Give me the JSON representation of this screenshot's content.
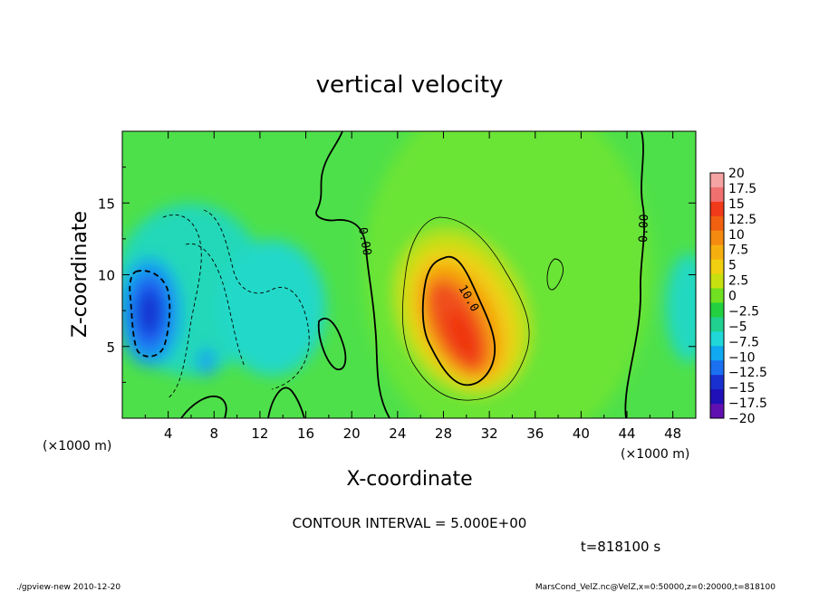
{
  "chart_data": {
    "type": "heatmap",
    "title": "vertical velocity",
    "xlabel": "X-coordinate",
    "ylabel": "Z-coordinate",
    "x_unit": "(×1000 m)",
    "y_unit": "(×1000 m)",
    "xlim": [
      0,
      50
    ],
    "ylim": [
      0,
      20
    ],
    "x_ticks": [
      4,
      8,
      12,
      16,
      20,
      24,
      28,
      32,
      36,
      40,
      44,
      48
    ],
    "y_ticks": [
      5,
      10,
      15
    ],
    "colorbar": {
      "range": [
        -20,
        20
      ],
      "labels": [
        "20",
        "17.5",
        "15",
        "12.5",
        "10",
        "7.5",
        "5",
        "2.5",
        "0",
        "−2.5",
        "−5",
        "−7.5",
        "−10",
        "−12.5",
        "−15",
        "−17.5",
        "−20"
      ],
      "colors": [
        "#f5a3a3",
        "#f07070",
        "#f03a1a",
        "#f06010",
        "#f58a10",
        "#f5b010",
        "#f0d010",
        "#c8e010",
        "#70e020",
        "#22d040",
        "#20d090",
        "#20d8d8",
        "#10a8f0",
        "#1a70f0",
        "#1830d0",
        "#2010b8",
        "#6010b0"
      ]
    },
    "contour_labels": [
      "0.00",
      "0.00",
      "10.0"
    ],
    "features": [
      {
        "kind": "updraft_max",
        "x": 29,
        "z": 7,
        "value": 17
      },
      {
        "kind": "downdraft_min",
        "x": 2.5,
        "z": 7.5,
        "value": -13
      }
    ],
    "contour_interval_text": "CONTOUR INTERVAL = 5.000E+00",
    "time_text": "t=818100 s"
  },
  "footer": {
    "left": "./gpview-new   2010-12-20",
    "right": "MarsCond_VelZ.nc@VelZ,x=0:50000,z=0:20000,t=818100"
  }
}
